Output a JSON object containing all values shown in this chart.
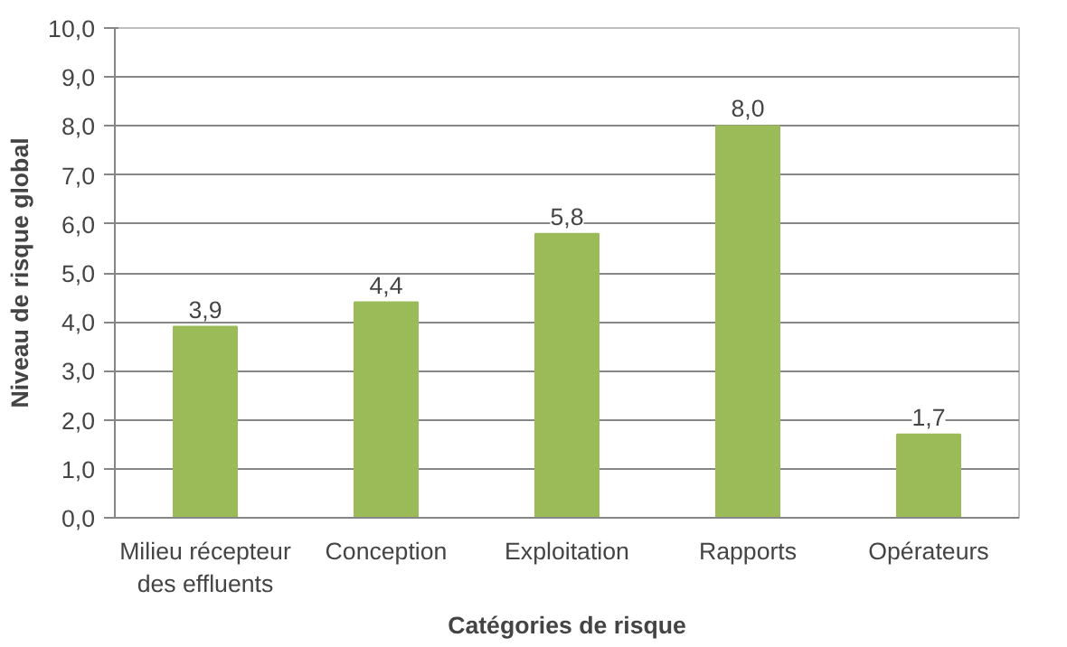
{
  "chart_data": {
    "type": "bar",
    "xlabel": "Catégories de risque",
    "ylabel": "Niveau de risque global",
    "categories": [
      "Milieu récepteur des effluents",
      "Conception",
      "Exploitation",
      "Rapports",
      "Opérateurs"
    ],
    "values": [
      3.9,
      4.4,
      5.8,
      8.0,
      1.7
    ],
    "value_labels": [
      "3,9",
      "4,4",
      "5,8",
      "8,0",
      "1,7"
    ],
    "color": "#9bbb59",
    "ylim": [
      0,
      10
    ],
    "yticks": [
      {
        "value": 0,
        "label": "0,0"
      },
      {
        "value": 1,
        "label": "1,0"
      },
      {
        "value": 2,
        "label": "2,0"
      },
      {
        "value": 3,
        "label": "3,0"
      },
      {
        "value": 4,
        "label": "4,0"
      },
      {
        "value": 5,
        "label": "5,0"
      },
      {
        "value": 6,
        "label": "6,0"
      },
      {
        "value": 7,
        "label": "7,0"
      },
      {
        "value": 8,
        "label": "8,0"
      },
      {
        "value": 9,
        "label": "9,0"
      },
      {
        "value": 10,
        "label": "10,0"
      }
    ],
    "grid": "y"
  }
}
